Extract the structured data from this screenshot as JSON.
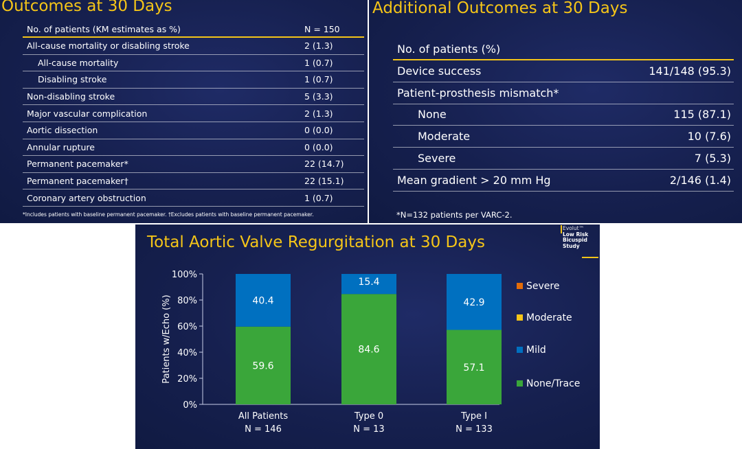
{
  "slide1": {
    "title": "Outcomes at 30 Days",
    "header": {
      "label": "No. of patients (KM estimates as %)",
      "value": "N = 150"
    },
    "rows": [
      {
        "label": "All-cause mortality or disabling stroke",
        "value": "2 (1.3)",
        "indent": false
      },
      {
        "label": "All-cause mortality",
        "value": "1 (0.7)",
        "indent": true
      },
      {
        "label": "Disabling stroke",
        "value": "1 (0.7)",
        "indent": true
      },
      {
        "label": "Non-disabling stroke",
        "value": "5 (3.3)",
        "indent": false
      },
      {
        "label": "Major vascular complication",
        "value": "2 (1.3)",
        "indent": false
      },
      {
        "label": "Aortic dissection",
        "value": "0 (0.0)",
        "indent": false
      },
      {
        "label": "Annular rupture",
        "value": "0 (0.0)",
        "indent": false
      },
      {
        "label": "Permanent pacemaker*",
        "value": "22 (14.7)",
        "indent": false
      },
      {
        "label": "Permanent pacemaker†",
        "value": "22 (15.1)",
        "indent": false
      },
      {
        "label": "Coronary artery obstruction",
        "value": "1 (0.7)",
        "indent": false
      }
    ],
    "footnote": "*Includes patients with baseline permanent pacemaker. †Excludes patients with baseline permanent pacemaker."
  },
  "slide2": {
    "title": "Additional Outcomes at 30 Days",
    "header": {
      "label": "No. of patients (%)",
      "value": ""
    },
    "rows": [
      {
        "label": "Device success",
        "value": "141/148 (95.3)",
        "indent": false
      },
      {
        "label": "Patient-prosthesis mismatch*",
        "value": "",
        "indent": false
      },
      {
        "label": "None",
        "value": "115 (87.1)",
        "indent": true
      },
      {
        "label": "Moderate",
        "value": "10 (7.6)",
        "indent": true
      },
      {
        "label": "Severe",
        "value": "7 (5.3)",
        "indent": true
      },
      {
        "label": "Mean gradient > 20 mm Hg",
        "value": "2/146 (1.4)",
        "indent": false
      }
    ],
    "footnote": "*N=132 patients per VARC-2."
  },
  "slide3": {
    "title": "Total Aortic Valve Regurgitation at 30 Days",
    "logo": {
      "brand": "Evolut™",
      "line1": "Low Risk",
      "line2": "Bicuspid",
      "line3": "Study"
    }
  },
  "colors": {
    "title": "#f5c518",
    "severe": "#e36c09",
    "moderate": "#f5c518",
    "mild": "#0070c0",
    "none_trace": "#3aa63a"
  },
  "chart_data": {
    "type": "bar",
    "stacked": true,
    "title": "Total Aortic Valve Regurgitation at 30 Days",
    "ylabel": "Patients w/Echo (%)",
    "xlabel": "",
    "ylim": [
      0,
      100
    ],
    "yticks": [
      "0%",
      "20%",
      "40%",
      "60%",
      "80%",
      "100%"
    ],
    "categories": [
      {
        "name": "All Patients",
        "n": "N = 146"
      },
      {
        "name": "Type 0",
        "n": "N = 13"
      },
      {
        "name": "Type I",
        "n": "N = 133"
      }
    ],
    "series": [
      {
        "name": "None/Trace",
        "color": "#3aa63a",
        "values": [
          59.6,
          84.6,
          57.1
        ],
        "labels": [
          "59.6",
          "84.6",
          "57.1"
        ]
      },
      {
        "name": "Mild",
        "color": "#0070c0",
        "values": [
          40.4,
          15.4,
          42.9
        ],
        "labels": [
          "40.4",
          "15.4",
          "42.9"
        ]
      },
      {
        "name": "Moderate",
        "color": "#f5c518",
        "values": [
          0,
          0,
          0
        ],
        "labels": [
          "",
          "",
          ""
        ]
      },
      {
        "name": "Severe",
        "color": "#e36c09",
        "values": [
          0,
          0,
          0
        ],
        "labels": [
          "",
          "",
          ""
        ]
      }
    ],
    "legend_order": [
      "Severe",
      "Moderate",
      "Mild",
      "None/Trace"
    ],
    "legend_position": "right",
    "grid": false
  }
}
